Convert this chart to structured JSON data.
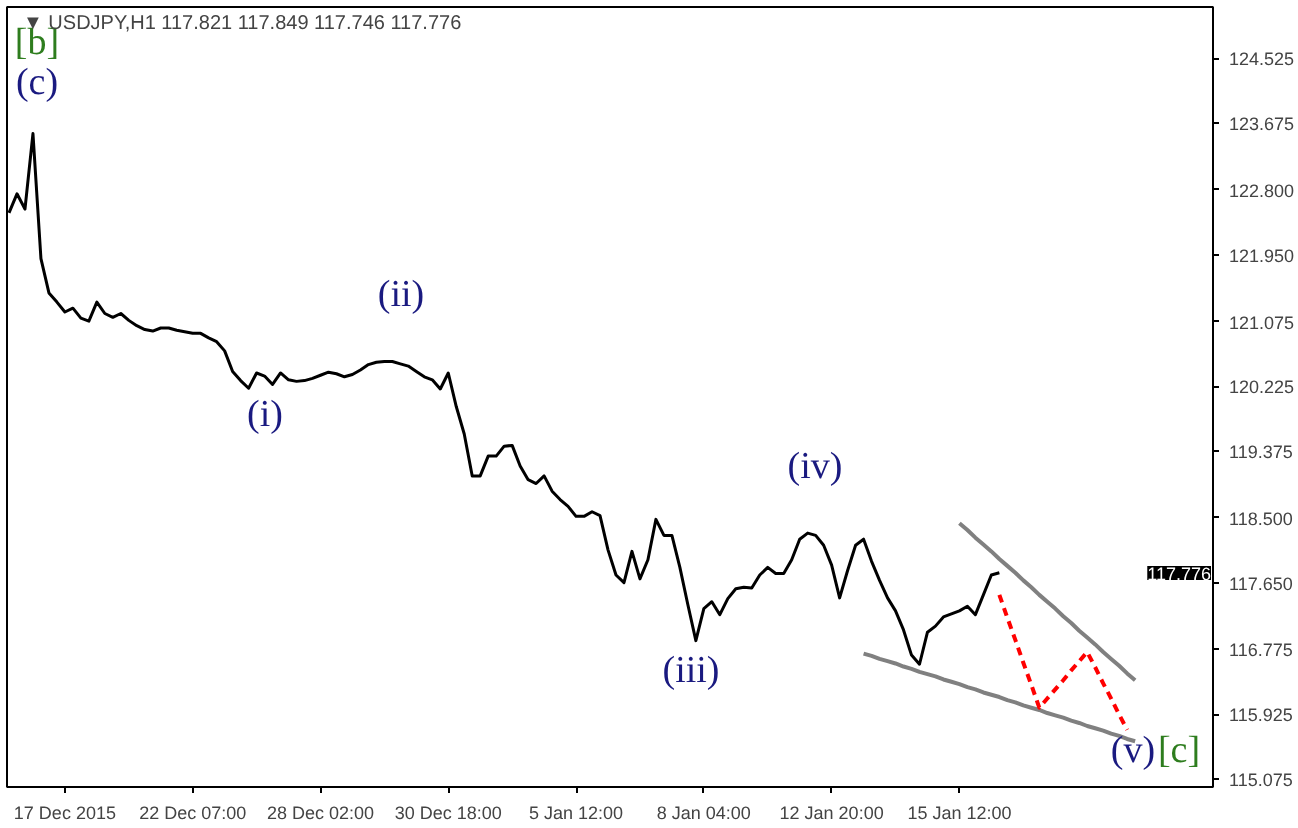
{
  "chart_data": {
    "type": "line",
    "title": "▼ USDJPY,H1  117.821 117.849 117.746 117.776",
    "categories": [
      null,
      null,
      null,
      null,
      null,
      null,
      null,
      "17 Dec 2015",
      null,
      null,
      null,
      null,
      null,
      null,
      null,
      null,
      null,
      null,
      null,
      null,
      null,
      null,
      null,
      "22 Dec 07:00",
      null,
      null,
      null,
      null,
      null,
      null,
      null,
      null,
      null,
      null,
      null,
      null,
      null,
      null,
      null,
      "28 Dec 02:00",
      null,
      null,
      null,
      null,
      null,
      null,
      null,
      null,
      null,
      null,
      null,
      null,
      null,
      null,
      null,
      "30 Dec 18:00",
      null,
      null,
      null,
      null,
      null,
      null,
      null,
      null,
      null,
      null,
      null,
      null,
      null,
      null,
      null,
      "5 Jan 12:00",
      null,
      null,
      null,
      null,
      null,
      null,
      null,
      null,
      null,
      null,
      null,
      null,
      null,
      null,
      null,
      "8 Jan 04:00",
      null,
      null,
      null,
      null,
      null,
      null,
      null,
      null,
      null,
      null,
      null,
      null,
      null,
      null,
      null,
      "12 Jan 20:00",
      null,
      null,
      null,
      null,
      null,
      null,
      null,
      null,
      null,
      null,
      null,
      null,
      null,
      null,
      null,
      "15 Jan 12:00",
      null,
      null,
      null,
      null,
      null,
      null,
      null,
      null,
      null,
      null,
      null,
      null,
      null,
      null,
      null,
      null,
      null,
      null,
      null,
      null,
      null,
      null,
      null,
      null,
      null,
      null,
      null,
      null,
      null,
      null,
      null
    ],
    "series": [
      {
        "color": "#000000",
        "values": [
          122.5,
          122.75,
          122.55,
          123.54,
          121.9,
          121.45,
          121.33,
          121.2,
          121.25,
          121.12,
          121.08,
          121.33,
          121.18,
          121.13,
          121.18,
          121.09,
          121.02,
          120.97,
          120.95,
          120.99,
          120.99,
          120.96,
          120.94,
          120.92,
          120.92,
          120.86,
          120.81,
          120.69,
          120.42,
          120.3,
          120.2,
          120.4,
          120.36,
          120.25,
          120.4,
          120.31,
          120.29,
          120.3,
          120.33,
          120.37,
          120.41,
          120.39,
          120.35,
          120.38,
          120.44,
          120.51,
          120.54,
          120.55,
          120.55,
          120.52,
          120.49,
          120.42,
          120.35,
          120.31,
          120.19,
          120.4,
          119.96,
          119.6,
          119.05,
          119.05,
          119.31,
          119.31,
          119.44,
          119.45,
          119.18,
          119.0,
          118.95,
          119.05,
          118.85,
          118.74,
          118.65,
          118.52,
          118.52,
          118.58,
          118.53,
          118.08,
          117.75,
          117.65,
          118.06,
          117.7,
          117.95,
          118.48,
          118.27,
          118.27,
          117.85,
          117.36,
          116.89,
          117.31,
          117.4,
          117.23,
          117.44,
          117.57,
          117.59,
          117.58,
          117.75,
          117.85,
          117.77,
          117.77,
          117.95,
          118.22,
          118.3,
          118.27,
          118.14,
          117.88,
          117.45,
          117.81,
          118.14,
          118.22,
          117.93,
          117.68,
          117.45,
          117.28,
          117.03,
          116.7,
          116.58,
          117.0,
          117.08,
          117.2,
          117.24,
          117.28,
          117.34,
          117.23,
          117.49,
          117.75,
          117.78,
          null,
          null,
          null,
          null,
          null,
          null,
          null,
          null,
          null,
          null,
          null,
          null,
          null,
          null,
          null,
          null,
          null,
          null,
          null,
          null,
          null,
          null,
          null,
          null,
          null,
          null
        ]
      },
      {
        "color": "#808080",
        "values": [
          null,
          null,
          null,
          null,
          null,
          null,
          null,
          null,
          null,
          null,
          null,
          null,
          null,
          null,
          null,
          null,
          null,
          null,
          null,
          null,
          null,
          null,
          null,
          null,
          null,
          null,
          null,
          null,
          null,
          null,
          null,
          null,
          null,
          null,
          null,
          null,
          null,
          null,
          null,
          null,
          null,
          null,
          null,
          null,
          null,
          null,
          null,
          null,
          null,
          null,
          null,
          null,
          null,
          null,
          null,
          null,
          null,
          null,
          null,
          null,
          null,
          null,
          null,
          null,
          null,
          null,
          null,
          null,
          null,
          null,
          null,
          null,
          null,
          null,
          null,
          null,
          null,
          null,
          null,
          null,
          null,
          null,
          null,
          null,
          null,
          null,
          null,
          null,
          null,
          null,
          null,
          null,
          null,
          null,
          null,
          null,
          null,
          null,
          null,
          null,
          null,
          null,
          null,
          null,
          null,
          null,
          null,
          null,
          null,
          null,
          null,
          null,
          null,
          null,
          null,
          null,
          null,
          null,
          null,
          118.43,
          118.34,
          118.24,
          118.15,
          118.06,
          117.96,
          117.87,
          117.78,
          117.68,
          117.59,
          117.49,
          117.4,
          117.31,
          117.21,
          117.12,
          117.02,
          116.93,
          116.84,
          116.74,
          116.65,
          116.56,
          116.46,
          116.37,
          null,
          null,
          null,
          null,
          null,
          null,
          null,
          null,
          null
        ]
      },
      {
        "color": "#808080",
        "values": [
          null,
          null,
          null,
          null,
          null,
          null,
          null,
          null,
          null,
          null,
          null,
          null,
          null,
          null,
          null,
          null,
          null,
          null,
          null,
          null,
          null,
          null,
          null,
          null,
          null,
          null,
          null,
          null,
          null,
          null,
          null,
          null,
          null,
          null,
          null,
          null,
          null,
          null,
          null,
          null,
          null,
          null,
          null,
          null,
          null,
          null,
          null,
          null,
          null,
          null,
          null,
          null,
          null,
          null,
          null,
          null,
          null,
          null,
          null,
          null,
          null,
          null,
          null,
          null,
          null,
          null,
          null,
          null,
          null,
          null,
          null,
          null,
          null,
          null,
          null,
          null,
          null,
          null,
          null,
          null,
          null,
          null,
          null,
          null,
          null,
          null,
          null,
          null,
          null,
          null,
          null,
          null,
          null,
          null,
          null,
          null,
          null,
          null,
          null,
          null,
          null,
          null,
          null,
          null,
          null,
          null,
          null,
          116.72,
          116.69,
          116.65,
          116.62,
          116.59,
          116.55,
          116.52,
          116.48,
          116.45,
          116.42,
          116.38,
          116.35,
          116.32,
          116.28,
          116.25,
          116.21,
          116.18,
          116.15,
          116.11,
          116.08,
          116.04,
          116.01,
          115.98,
          115.94,
          115.91,
          115.88,
          115.84,
          115.81,
          115.77,
          115.74,
          115.71,
          115.67,
          115.64,
          115.6,
          115.57,
          null,
          null,
          null,
          null,
          null,
          null,
          null,
          null,
          null
        ]
      },
      {
        "color": "#ff0000",
        "line_style": "dashed",
        "values": [
          null,
          null,
          null,
          null,
          null,
          null,
          null,
          null,
          null,
          null,
          null,
          null,
          null,
          null,
          null,
          null,
          null,
          null,
          null,
          null,
          null,
          null,
          null,
          null,
          null,
          null,
          null,
          null,
          null,
          null,
          null,
          null,
          null,
          null,
          null,
          null,
          null,
          null,
          null,
          null,
          null,
          null,
          null,
          null,
          null,
          null,
          null,
          null,
          null,
          null,
          null,
          null,
          null,
          null,
          null,
          null,
          null,
          null,
          null,
          null,
          null,
          null,
          null,
          null,
          null,
          null,
          null,
          null,
          null,
          null,
          null,
          null,
          null,
          null,
          null,
          null,
          null,
          null,
          null,
          null,
          null,
          null,
          null,
          null,
          null,
          null,
          null,
          null,
          null,
          null,
          null,
          null,
          null,
          null,
          null,
          null,
          null,
          null,
          null,
          null,
          null,
          null,
          null,
          null,
          null,
          null,
          null,
          null,
          null,
          null,
          null,
          null,
          null,
          null,
          null,
          null,
          null,
          null,
          null,
          null,
          null,
          null,
          null,
          null,
          117.49,
          117.19,
          116.9,
          116.6,
          116.31,
          116.01,
          116.13,
          116.25,
          116.37,
          116.5,
          116.62,
          116.74,
          116.54,
          116.33,
          116.13,
          115.92,
          115.72,
          null,
          null,
          null,
          null,
          null,
          null,
          null,
          null,
          null,
          null
        ]
      }
    ],
    "ylim": [
      114.97,
      125.2
    ],
    "yticks": [
      {
        "value": 124.525,
        "label": "124.525"
      },
      {
        "value": 123.675,
        "label": "123.675"
      },
      {
        "value": 122.8,
        "label": "122.800"
      },
      {
        "value": 121.95,
        "label": "121.950"
      },
      {
        "value": 121.075,
        "label": "121.075"
      },
      {
        "value": 120.225,
        "label": "120.225"
      },
      {
        "value": 119.375,
        "label": "119.375"
      },
      {
        "value": 118.5,
        "label": "118.500"
      },
      {
        "value": 117.65,
        "label": "117.650"
      },
      {
        "value": 116.775,
        "label": "116.775"
      },
      {
        "value": 115.925,
        "label": "115.925"
      },
      {
        "value": 115.075,
        "label": "115.075"
      }
    ],
    "annotations": [
      "[b]",
      "(c)",
      "(i)",
      "(ii)",
      "(iii)",
      "(iv)",
      "(v)",
      "[c]",
      "117.776"
    ],
    "grid": false
  }
}
